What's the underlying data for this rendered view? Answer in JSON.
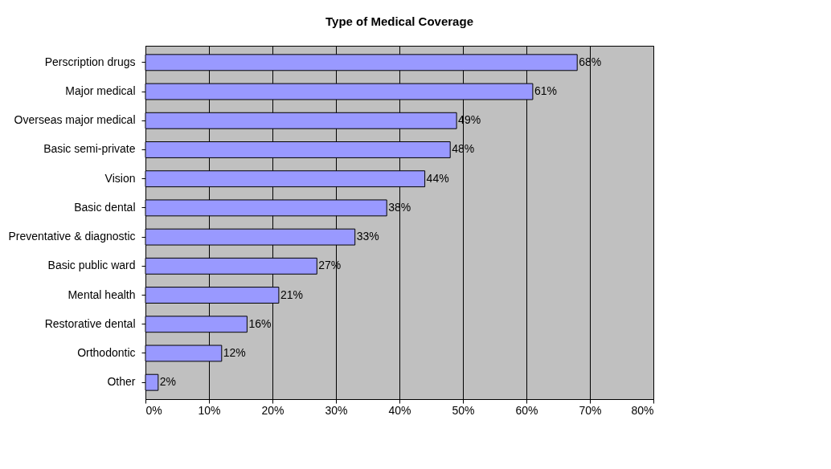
{
  "chart_data": {
    "type": "bar",
    "orientation": "horizontal",
    "title": "Type of Medical Coverage",
    "categories": [
      "Perscription drugs",
      "Major medical",
      "Overseas major medical",
      "Basic semi-private",
      "Vision",
      "Basic dental",
      "Preventative & diagnostic",
      "Basic public ward",
      "Mental health",
      "Restorative dental",
      "Orthodontic",
      "Other"
    ],
    "values": [
      68,
      61,
      49,
      48,
      44,
      38,
      33,
      27,
      21,
      16,
      12,
      2
    ],
    "value_labels": [
      "68%",
      "61%",
      "49%",
      "48%",
      "44%",
      "38%",
      "33%",
      "27%",
      "21%",
      "16%",
      "12%",
      "2%"
    ],
    "color": "#9999ff",
    "xlim": [
      0,
      80
    ],
    "xticks": [
      {
        "value": 0,
        "label": "0%"
      },
      {
        "value": 10,
        "label": "10%"
      },
      {
        "value": 20,
        "label": "20%"
      },
      {
        "value": 30,
        "label": "30%"
      },
      {
        "value": 40,
        "label": "40%"
      },
      {
        "value": 50,
        "label": "50%"
      },
      {
        "value": 60,
        "label": "60%"
      },
      {
        "value": 70,
        "label": "70%"
      },
      {
        "value": 80,
        "label": "80%"
      }
    ],
    "grid": "x"
  }
}
